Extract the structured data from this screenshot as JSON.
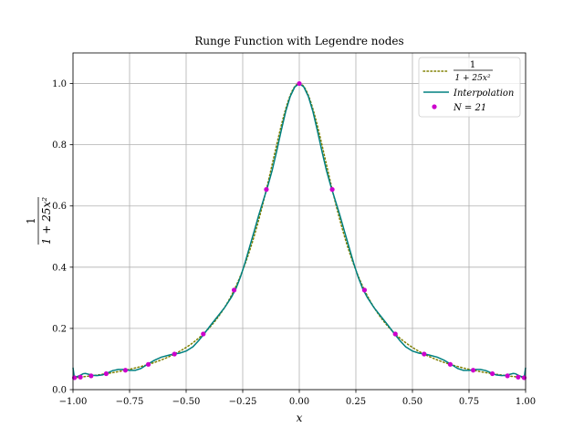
{
  "chart_data": {
    "type": "line",
    "title": "Runge Function with Legendre nodes",
    "xlabel": "x",
    "ylabel": {
      "numerator": "1",
      "denominator": "1 + 25x²"
    },
    "xlim": [
      -1.0,
      1.0
    ],
    "ylim": [
      0.0,
      1.1
    ],
    "grid": true,
    "legend_position": "top-right",
    "x_ticks": [
      -1.0,
      -0.75,
      -0.5,
      -0.25,
      0.0,
      0.25,
      0.5,
      0.75,
      1.0
    ],
    "x_tick_labels": [
      "−1.00",
      "−0.75",
      "−0.50",
      "−0.25",
      "0.00",
      "0.25",
      "0.50",
      "0.75",
      "1.00"
    ],
    "y_ticks": [
      0.0,
      0.2,
      0.4,
      0.6,
      0.8,
      1.0
    ],
    "y_tick_labels": [
      "0.0",
      "0.2",
      "0.4",
      "0.6",
      "0.8",
      "1.0"
    ],
    "colors": {
      "runge": "#808000",
      "interp": "#008080",
      "nodes": "#cc00cc",
      "grid": "#b0b0b0"
    },
    "series": [
      {
        "name": "runge",
        "legend_numerator": "1",
        "legend_denominator": "1 + 25x²",
        "style": "dotted",
        "function": "1/(1+25x^2)"
      },
      {
        "name": "Interpolation",
        "legend_label": "Interpolation",
        "style": "solid",
        "points": [
          [
            -1.0,
            0.072
          ],
          [
            -0.995,
            0.045
          ],
          [
            -0.985,
            0.042
          ],
          [
            -0.97,
            0.046
          ],
          [
            -0.955,
            0.052
          ],
          [
            -0.945,
            0.053
          ],
          [
            -0.93,
            0.05
          ],
          [
            -0.915,
            0.047
          ],
          [
            -0.895,
            0.046
          ],
          [
            -0.87,
            0.048
          ],
          [
            -0.85,
            0.054
          ],
          [
            -0.825,
            0.062
          ],
          [
            -0.8,
            0.066
          ],
          [
            -0.78,
            0.066
          ],
          [
            -0.75,
            0.063
          ],
          [
            -0.725,
            0.063
          ],
          [
            -0.7,
            0.069
          ],
          [
            -0.67,
            0.083
          ],
          [
            -0.64,
            0.096
          ],
          [
            -0.61,
            0.106
          ],
          [
            -0.575,
            0.113
          ],
          [
            -0.55,
            0.117
          ],
          [
            -0.53,
            0.119
          ],
          [
            -0.5,
            0.126
          ],
          [
            -0.47,
            0.14
          ],
          [
            -0.445,
            0.16
          ],
          [
            -0.42,
            0.183
          ],
          [
            -0.39,
            0.212
          ],
          [
            -0.36,
            0.24
          ],
          [
            -0.33,
            0.268
          ],
          [
            -0.3,
            0.302
          ],
          [
            -0.28,
            0.33
          ],
          [
            -0.26,
            0.368
          ],
          [
            -0.24,
            0.414
          ],
          [
            -0.22,
            0.465
          ],
          [
            -0.2,
            0.516
          ],
          [
            -0.18,
            0.568
          ],
          [
            -0.16,
            0.616
          ],
          [
            -0.14,
            0.663
          ],
          [
            -0.12,
            0.716
          ],
          [
            -0.1,
            0.779
          ],
          [
            -0.08,
            0.846
          ],
          [
            -0.06,
            0.909
          ],
          [
            -0.04,
            0.958
          ],
          [
            -0.02,
            0.989
          ],
          [
            0.0,
            1.0
          ],
          [
            0.02,
            0.989
          ],
          [
            0.04,
            0.958
          ],
          [
            0.06,
            0.909
          ],
          [
            0.08,
            0.846
          ],
          [
            0.1,
            0.779
          ],
          [
            0.12,
            0.716
          ],
          [
            0.14,
            0.663
          ],
          [
            0.16,
            0.616
          ],
          [
            0.18,
            0.568
          ],
          [
            0.2,
            0.516
          ],
          [
            0.22,
            0.465
          ],
          [
            0.24,
            0.414
          ],
          [
            0.26,
            0.368
          ],
          [
            0.28,
            0.33
          ],
          [
            0.3,
            0.302
          ],
          [
            0.33,
            0.268
          ],
          [
            0.36,
            0.24
          ],
          [
            0.39,
            0.212
          ],
          [
            0.42,
            0.183
          ],
          [
            0.445,
            0.16
          ],
          [
            0.47,
            0.14
          ],
          [
            0.5,
            0.126
          ],
          [
            0.53,
            0.119
          ],
          [
            0.55,
            0.117
          ],
          [
            0.575,
            0.113
          ],
          [
            0.61,
            0.106
          ],
          [
            0.64,
            0.096
          ],
          [
            0.67,
            0.083
          ],
          [
            0.7,
            0.069
          ],
          [
            0.725,
            0.063
          ],
          [
            0.75,
            0.063
          ],
          [
            0.78,
            0.066
          ],
          [
            0.8,
            0.066
          ],
          [
            0.825,
            0.062
          ],
          [
            0.85,
            0.054
          ],
          [
            0.87,
            0.048
          ],
          [
            0.895,
            0.046
          ],
          [
            0.915,
            0.047
          ],
          [
            0.93,
            0.05
          ],
          [
            0.945,
            0.053
          ],
          [
            0.955,
            0.052
          ],
          [
            0.97,
            0.046
          ],
          [
            0.985,
            0.042
          ],
          [
            0.995,
            0.045
          ],
          [
            1.0,
            0.072
          ]
        ]
      },
      {
        "name": "nodes",
        "legend_label": "N = 21",
        "style": "markers",
        "x": [
          -0.9937,
          -0.9672,
          -0.92,
          -0.8533,
          -0.7684,
          -0.6671,
          -0.5516,
          -0.4243,
          -0.288,
          -0.1455,
          0.0,
          0.1455,
          0.288,
          0.4243,
          0.5516,
          0.6671,
          0.7684,
          0.8533,
          0.92,
          0.9672,
          0.9937
        ]
      }
    ]
  }
}
